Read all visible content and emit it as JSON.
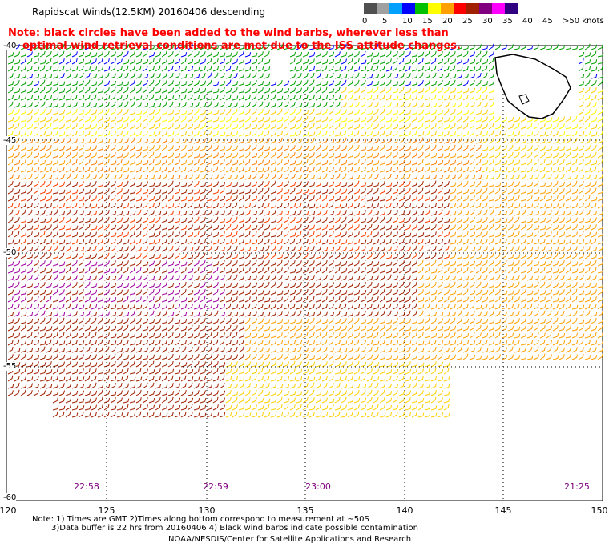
{
  "header": {
    "title": "Rapidscat Winds(12.5KM) 20160406 descending",
    "note_line1": "Note: black circles have been added to the wind barbs, wherever less than",
    "note_line2": "optimal wind retrieval conditions are met due to the ISS attitude changes."
  },
  "legend": {
    "unit": "knots",
    "labels": [
      "0",
      "5",
      "10",
      "15",
      "20",
      "25",
      "30",
      "35",
      "40",
      "45",
      ">50 knots"
    ],
    "colors": [
      "#505050",
      "#a0a0a0",
      "#00a0ff",
      "#0000ff",
      "#00c000",
      "#ffff00",
      "#ffa000",
      "#ff0000",
      "#a02000",
      "#800080",
      "#ff00ff",
      "#300080"
    ]
  },
  "axes": {
    "lat_labels": [
      "-40",
      "-45",
      "-50",
      "-55",
      "-60"
    ],
    "lon_labels": [
      "120",
      "125",
      "130",
      "135",
      "140",
      "145",
      "150"
    ]
  },
  "times": [
    "22:58",
    "22:59",
    "23:00",
    "21:25"
  ],
  "footer": {
    "line1": "Note: 1) Times are GMT 2)Times along bottom correspond to measurement at ~50S",
    "line2": "3)Data buffer is 22 hrs from 20160406 4) Black wind barbs indicate possible contamination",
    "line3": "NOAA/NESDIS/Center for Satellite Applications and Research"
  }
}
